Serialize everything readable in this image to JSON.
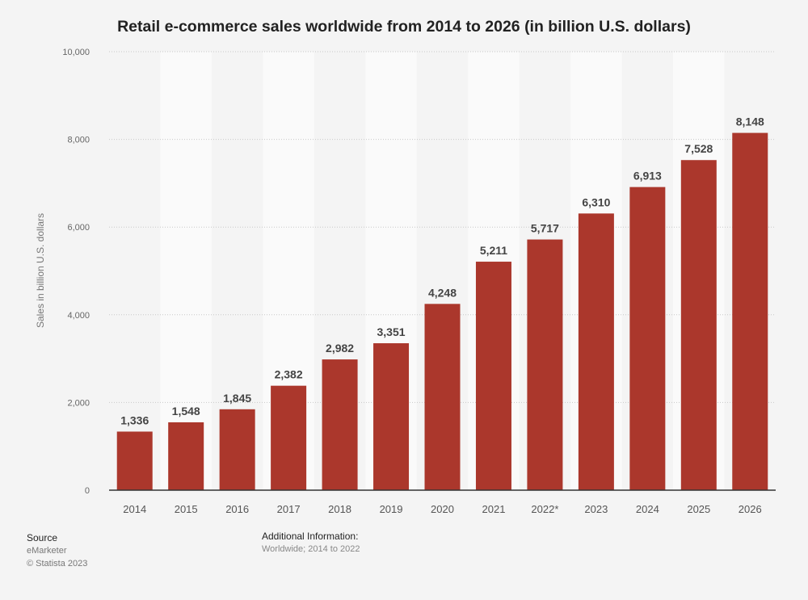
{
  "chart_data": {
    "type": "bar",
    "title": "Retail e-commerce sales worldwide from 2014 to 2026 (in billion U.S. dollars)",
    "xlabel": "",
    "ylabel": "Sales in billion U.S. dollars",
    "ylim": [
      0,
      10000
    ],
    "yticks": [
      0,
      2000,
      4000,
      6000,
      8000,
      10000
    ],
    "ytick_labels": [
      "0",
      "2,000",
      "4,000",
      "6,000",
      "8,000",
      "10,000"
    ],
    "grid": true,
    "categories": [
      "2014",
      "2015",
      "2016",
      "2017",
      "2018",
      "2019",
      "2020",
      "2021",
      "2022*",
      "2023",
      "2024",
      "2025",
      "2026"
    ],
    "values": [
      1336,
      1548,
      1845,
      2382,
      2982,
      3351,
      4248,
      5211,
      5717,
      6310,
      6913,
      7528,
      8148
    ],
    "data_labels": [
      "1,336",
      "1,548",
      "1,845",
      "2,382",
      "2,982",
      "3,351",
      "4,248",
      "5,211",
      "5,717",
      "6,310",
      "6,913",
      "7,528",
      "8,148"
    ],
    "colors": {
      "bar": "#ab372c",
      "band_light": "#fafafa",
      "background": "#f4f4f4"
    }
  },
  "footer": {
    "source_heading": "Source",
    "source_name": "eMarketer",
    "copyright": "© Statista 2023",
    "additional_heading": "Additional Information:",
    "additional_text": "Worldwide; 2014 to 2022"
  }
}
